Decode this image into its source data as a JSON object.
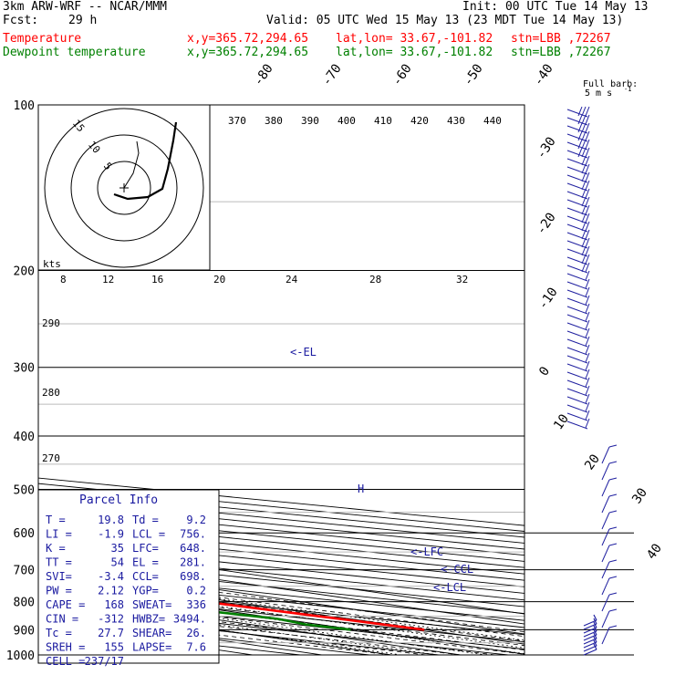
{
  "header": {
    "model": "3km ARW-WRF -- NCAR/MMM",
    "init": "Init: 00 UTC Tue 14 May 13",
    "fcst_label": "Fcst:",
    "fcst_value": "29 h",
    "valid": "Valid: 05 UTC Wed 15 May 13 (23 MDT Tue 14 May 13)",
    "temp_label": "Temperature",
    "dew_label": "Dewpoint temperature",
    "xy": "x,y=365.72,294.65",
    "latlon": "lat,lon= 33.67,-101.82",
    "stn": "stn=LBB ,72267",
    "temp_color": "#ff0000",
    "dew_color": "#008000"
  },
  "barb_legend": {
    "line1": "Full barb:",
    "line2": "5 m s",
    "sup": "-1"
  },
  "chart_data": {
    "type": "skew-t",
    "title": "Skew-T log-P sounding",
    "pressure_levels": [
      100,
      200,
      300,
      400,
      500,
      600,
      700,
      800,
      900,
      1000
    ],
    "temperature_ticks": [
      -80,
      -70,
      -60,
      -50,
      -40,
      -30,
      -20,
      -10,
      0,
      10,
      20,
      30,
      40
    ],
    "theta_labels": [
      370,
      380,
      390,
      400,
      410,
      420,
      430,
      440,
      290,
      280,
      270
    ],
    "mixing_ratio_labels": [
      2,
      3,
      5,
      8,
      12,
      20
    ],
    "hodo_ring_labels": [
      5,
      10,
      15
    ],
    "hodo_axis_labels": [
      8,
      12,
      16,
      20,
      24,
      28,
      32
    ],
    "hodo_units": "kts",
    "series": [
      {
        "name": "Temperature",
        "color": "#ff0000",
        "points": [
          [
            100,
            -57
          ],
          [
            120,
            -60
          ],
          [
            150,
            -63
          ],
          [
            180,
            -64
          ],
          [
            200,
            -63
          ],
          [
            250,
            -54
          ],
          [
            300,
            -45
          ],
          [
            350,
            -36
          ],
          [
            400,
            -27
          ],
          [
            450,
            -18
          ],
          [
            500,
            -10
          ],
          [
            600,
            0
          ],
          [
            650,
            4.5
          ],
          [
            700,
            9
          ],
          [
            750,
            13
          ],
          [
            800,
            16
          ],
          [
            850,
            18
          ],
          [
            900,
            19.8
          ]
        ]
      },
      {
        "name": "Dewpoint temperature",
        "color": "#008000",
        "points": [
          [
            100,
            -61
          ],
          [
            120,
            -66
          ],
          [
            150,
            -75
          ],
          [
            180,
            -80
          ],
          [
            200,
            -82
          ],
          [
            240,
            -86
          ],
          [
            270,
            -83
          ],
          [
            300,
            -84
          ],
          [
            350,
            -86
          ],
          [
            400,
            -88
          ],
          [
            450,
            -93
          ],
          [
            500,
            -100
          ],
          [
            550,
            -76
          ],
          [
            600,
            -38
          ],
          [
            650,
            -15
          ],
          [
            700,
            -5
          ],
          [
            750,
            -2
          ],
          [
            780,
            -1
          ],
          [
            830,
            7
          ],
          [
            860,
            9.5
          ],
          [
            880,
            8
          ],
          [
            900,
            9.2
          ]
        ]
      }
    ],
    "annotations": [
      "<-EL",
      "<-LFC",
      "<-CCL",
      "<-LCL"
    ],
    "parcel_info": {
      "title": "Parcel Info",
      "rows": [
        [
          "T  =",
          "19.8",
          "Td =",
          "9.2"
        ],
        [
          "LI =",
          "-1.9",
          "LCL =",
          "756."
        ],
        [
          "K  =",
          "35",
          "LFC=",
          "648."
        ],
        [
          "TT =",
          "54",
          "EL =",
          "281."
        ],
        [
          "SVI=",
          "-3.4",
          "CCL=",
          "698."
        ],
        [
          "PW =",
          "2.12",
          "YGP=",
          "0.2"
        ],
        [
          "CAPE =",
          "168",
          "SWEAT=",
          "336"
        ],
        [
          "CIN =",
          "-312",
          "HWBZ=",
          "3494."
        ],
        [
          "Tc =",
          "27.7",
          "SHEAR=",
          "26."
        ],
        [
          "SREH =",
          "155",
          "LAPSE=",
          "7.6"
        ],
        [
          "CELL =",
          "237/17",
          "",
          ""
        ]
      ]
    }
  }
}
